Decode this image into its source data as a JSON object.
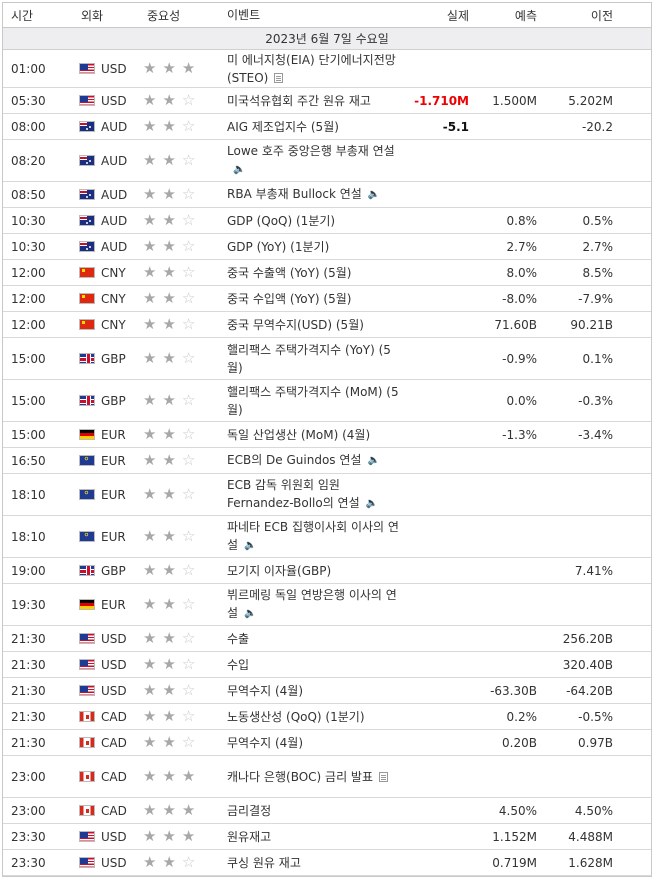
{
  "header": {
    "time": "시간",
    "currency": "외화",
    "importance": "중요성",
    "event": "이벤트",
    "actual": "실제",
    "forecast": "예측",
    "previous": "이전"
  },
  "date_label": "2023년 6월 7일 수요일",
  "rows": [
    {
      "time": "01:00",
      "flag": "us",
      "cur": "USD",
      "stars": 3,
      "event": "미 에너지청(EIA) 단기에너지전망(STEO)",
      "icon": "doc",
      "actual": "",
      "forecast": "",
      "previous": "",
      "h": 38
    },
    {
      "time": "05:30",
      "flag": "us",
      "cur": "USD",
      "stars": 2,
      "event": "미국석유협회 주간 원유 재고",
      "icon": "",
      "actual": "-1.710M",
      "actual_style": "red",
      "forecast": "1.500M",
      "previous": "5.202M",
      "h": 26
    },
    {
      "time": "08:00",
      "flag": "au",
      "cur": "AUD",
      "stars": 2,
      "event": "AIG 제조업지수 (5월)",
      "icon": "",
      "actual": "-5.1",
      "actual_style": "bold",
      "forecast": "",
      "previous": "-20.2",
      "h": 26
    },
    {
      "time": "08:20",
      "flag": "au",
      "cur": "AUD",
      "stars": 2,
      "event": "Lowe 호주 중앙은행 부총재 연설",
      "icon": "speaker",
      "actual": "",
      "forecast": "",
      "previous": "",
      "h": 42
    },
    {
      "time": "08:50",
      "flag": "au",
      "cur": "AUD",
      "stars": 2,
      "event": "RBA 부총재 Bullock 연설",
      "icon": "speaker",
      "actual": "",
      "forecast": "",
      "previous": "",
      "h": 26
    },
    {
      "time": "10:30",
      "flag": "au",
      "cur": "AUD",
      "stars": 2,
      "event": "GDP (QoQ) (1분기)",
      "icon": "",
      "actual": "",
      "forecast": "0.8%",
      "previous": "0.5%",
      "h": 26
    },
    {
      "time": "10:30",
      "flag": "au",
      "cur": "AUD",
      "stars": 2,
      "event": "GDP (YoY) (1분기)",
      "icon": "",
      "actual": "",
      "forecast": "2.7%",
      "previous": "2.7%",
      "h": 26
    },
    {
      "time": "12:00",
      "flag": "cn",
      "cur": "CNY",
      "stars": 2,
      "event": "중국 수출액 (YoY) (5월)",
      "icon": "",
      "actual": "",
      "forecast": "8.0%",
      "previous": "8.5%",
      "h": 26
    },
    {
      "time": "12:00",
      "flag": "cn",
      "cur": "CNY",
      "stars": 2,
      "event": "중국 수입액 (YoY) (5월)",
      "icon": "",
      "actual": "",
      "forecast": "-8.0%",
      "previous": "-7.9%",
      "h": 26
    },
    {
      "time": "12:00",
      "flag": "cn",
      "cur": "CNY",
      "stars": 2,
      "event": "중국 무역수지(USD) (5월)",
      "icon": "",
      "actual": "",
      "forecast": "71.60B",
      "previous": "90.21B",
      "h": 26
    },
    {
      "time": "15:00",
      "flag": "gb",
      "cur": "GBP",
      "stars": 2,
      "event": "핼리팩스 주택가격지수 (YoY) (5월)",
      "icon": "",
      "actual": "",
      "forecast": "-0.9%",
      "previous": "0.1%",
      "h": 42
    },
    {
      "time": "15:00",
      "flag": "gb",
      "cur": "GBP",
      "stars": 2,
      "event": "핼리팩스 주택가격지수 (MoM) (5월)",
      "icon": "",
      "actual": "",
      "forecast": "0.0%",
      "previous": "-0.3%",
      "h": 42
    },
    {
      "time": "15:00",
      "flag": "de",
      "cur": "EUR",
      "stars": 2,
      "event": "독일 산업생산 (MoM) (4월)",
      "icon": "",
      "actual": "",
      "forecast": "-1.3%",
      "previous": "-3.4%",
      "h": 26
    },
    {
      "time": "16:50",
      "flag": "eu",
      "cur": "EUR",
      "stars": 2,
      "event": "ECB의 De Guindos 연설",
      "icon": "speaker",
      "actual": "",
      "forecast": "",
      "previous": "",
      "h": 26
    },
    {
      "time": "18:10",
      "flag": "eu",
      "cur": "EUR",
      "stars": 2,
      "event": "ECB 감독 위원회 임원 Fernandez-Bollo의 연설",
      "icon": "speaker",
      "actual": "",
      "forecast": "",
      "previous": "",
      "h": 42
    },
    {
      "time": "18:10",
      "flag": "eu",
      "cur": "EUR",
      "stars": 2,
      "event": "파네타 ECB 집행이사회 이사의 연설",
      "icon": "speaker",
      "actual": "",
      "forecast": "",
      "previous": "",
      "h": 42
    },
    {
      "time": "19:00",
      "flag": "gb",
      "cur": "GBP",
      "stars": 2,
      "event": "모기지 이자율(GBP)",
      "icon": "",
      "actual": "",
      "forecast": "",
      "previous": "7.41%",
      "h": 26
    },
    {
      "time": "19:30",
      "flag": "de",
      "cur": "EUR",
      "stars": 2,
      "event": "뷔르메링 독일 연방은행 이사의 연설",
      "icon": "speaker",
      "actual": "",
      "forecast": "",
      "previous": "",
      "h": 42
    },
    {
      "time": "21:30",
      "flag": "us",
      "cur": "USD",
      "stars": 2,
      "event": "수출",
      "icon": "",
      "actual": "",
      "forecast": "",
      "previous": "256.20B",
      "h": 26
    },
    {
      "time": "21:30",
      "flag": "us",
      "cur": "USD",
      "stars": 2,
      "event": "수입",
      "icon": "",
      "actual": "",
      "forecast": "",
      "previous": "320.40B",
      "h": 26
    },
    {
      "time": "21:30",
      "flag": "us",
      "cur": "USD",
      "stars": 2,
      "event": "무역수지 (4월)",
      "icon": "",
      "actual": "",
      "forecast": "-63.30B",
      "previous": "-64.20B",
      "h": 26
    },
    {
      "time": "21:30",
      "flag": "ca",
      "cur": "CAD",
      "stars": 2,
      "event": "노동생산성 (QoQ) (1분기)",
      "icon": "",
      "actual": "",
      "forecast": "0.2%",
      "previous": "-0.5%",
      "h": 26
    },
    {
      "time": "21:30",
      "flag": "ca",
      "cur": "CAD",
      "stars": 2,
      "event": "무역수지 (4월)",
      "icon": "",
      "actual": "",
      "forecast": "0.20B",
      "previous": "0.97B",
      "h": 26
    },
    {
      "time": "23:00",
      "flag": "ca",
      "cur": "CAD",
      "stars": 3,
      "event": "캐나다 은행(BOC) 금리 발표",
      "icon": "doc",
      "actual": "",
      "forecast": "",
      "previous": "",
      "h": 42
    },
    {
      "time": "23:00",
      "flag": "ca",
      "cur": "CAD",
      "stars": 3,
      "event": "금리결정",
      "icon": "",
      "actual": "",
      "forecast": "4.50%",
      "previous": "4.50%",
      "h": 26
    },
    {
      "time": "23:30",
      "flag": "us",
      "cur": "USD",
      "stars": 3,
      "event": "원유재고",
      "icon": "",
      "actual": "",
      "forecast": "1.152M",
      "previous": "4.488M",
      "h": 26
    },
    {
      "time": "23:30",
      "flag": "us",
      "cur": "USD",
      "stars": 2,
      "event": "쿠싱 원유 재고",
      "icon": "",
      "actual": "",
      "forecast": "0.719M",
      "previous": "1.628M",
      "h": 26
    }
  ]
}
